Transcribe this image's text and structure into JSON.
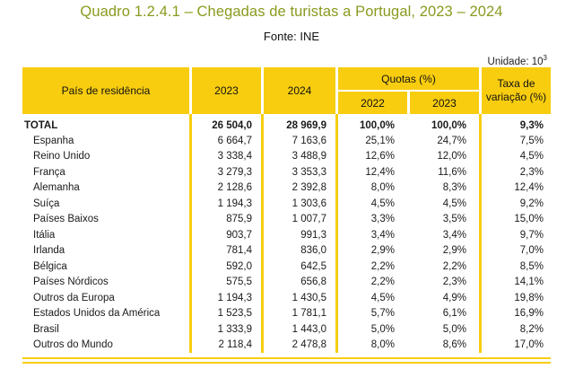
{
  "title": "Quadro 1.2.4.1 – Chegadas de turistas a Portugal, 2023 – 2024",
  "source": "Fonte: INE",
  "unit": {
    "label": "Unidade: 10",
    "exponent": "3"
  },
  "headers": {
    "country": "País de residência",
    "y2023": "2023",
    "y2024": "2024",
    "quotas": "Quotas (%)",
    "q2022": "2022",
    "q2023": "2023",
    "variation": "Taxa de variação (%)"
  },
  "colors": {
    "header_bg": "#f8cd0f",
    "title": "#8a9a1e"
  },
  "total": {
    "name": "TOTAL",
    "v2023": "26 504,0",
    "v2024": "28 969,9",
    "q2022": "100,0%",
    "q2023": "100,0%",
    "var": "9,3%"
  },
  "rows": [
    {
      "name": "Espanha",
      "v2023": "6 664,7",
      "v2024": "7 163,6",
      "q2022": "25,1%",
      "q2023": "24,7%",
      "var": "7,5%"
    },
    {
      "name": "Reino Unido",
      "v2023": "3 338,4",
      "v2024": "3 488,9",
      "q2022": "12,6%",
      "q2023": "12,0%",
      "var": "4,5%"
    },
    {
      "name": "França",
      "v2023": "3 279,3",
      "v2024": "3 353,3",
      "q2022": "12,4%",
      "q2023": "11,6%",
      "var": "2,3%"
    },
    {
      "name": "Alemanha",
      "v2023": "2 128,6",
      "v2024": "2 392,8",
      "q2022": "8,0%",
      "q2023": "8,3%",
      "var": "12,4%"
    },
    {
      "name": "Suíça",
      "v2023": "1 194,3",
      "v2024": "1 303,6",
      "q2022": "4,5%",
      "q2023": "4,5%",
      "var": "9,2%"
    },
    {
      "name": "Países Baixos",
      "v2023": "875,9",
      "v2024": "1 007,7",
      "q2022": "3,3%",
      "q2023": "3,5%",
      "var": "15,0%"
    },
    {
      "name": "Itália",
      "v2023": "903,7",
      "v2024": "991,3",
      "q2022": "3,4%",
      "q2023": "3,4%",
      "var": "9,7%"
    },
    {
      "name": "Irlanda",
      "v2023": "781,4",
      "v2024": "836,0",
      "q2022": "2,9%",
      "q2023": "2,9%",
      "var": "7,0%"
    },
    {
      "name": "Bélgica",
      "v2023": "592,0",
      "v2024": "642,5",
      "q2022": "2,2%",
      "q2023": "2,2%",
      "var": "8,5%"
    },
    {
      "name": "Países Nórdicos",
      "v2023": "575,5",
      "v2024": "656,8",
      "q2022": "2,2%",
      "q2023": "2,3%",
      "var": "14,1%"
    },
    {
      "name": "Outros da Europa",
      "v2023": "1 194,3",
      "v2024": "1 430,5",
      "q2022": "4,5%",
      "q2023": "4,9%",
      "var": "19,8%"
    },
    {
      "name": "Estados Unidos da América",
      "v2023": "1 523,5",
      "v2024": "1 781,1",
      "q2022": "5,7%",
      "q2023": "6,1%",
      "var": "16,9%"
    },
    {
      "name": "Brasil",
      "v2023": "1 333,9",
      "v2024": "1 443,0",
      "q2022": "5,0%",
      "q2023": "5,0%",
      "var": "8,2%"
    },
    {
      "name": "Outros do Mundo",
      "v2023": "2 118,4",
      "v2024": "2 478,8",
      "q2022": "8,0%",
      "q2023": "8,6%",
      "var": "17,0%"
    }
  ]
}
